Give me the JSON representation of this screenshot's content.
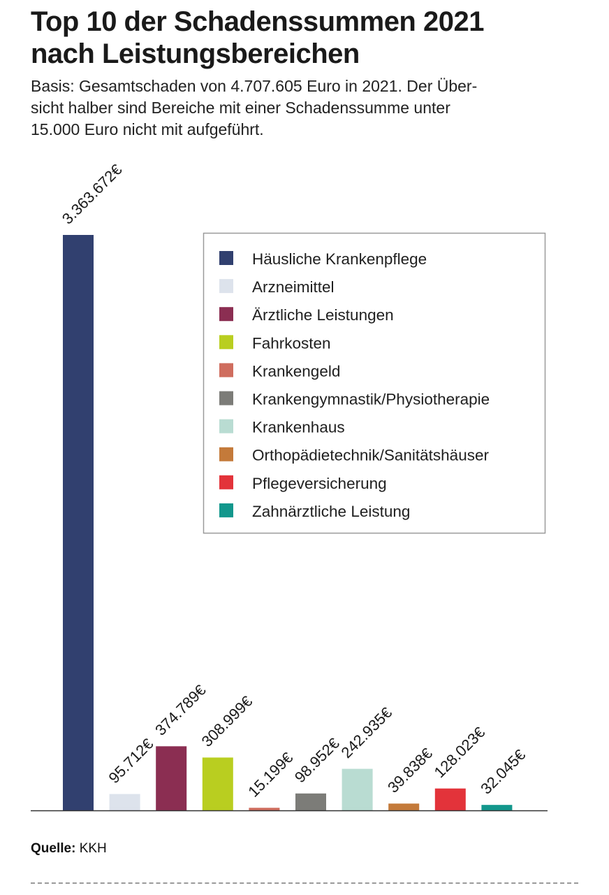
{
  "header": {
    "title_line1": "Top 10 der Schadenssummen 2021",
    "title_line2": "nach Leistungsbereichen",
    "subtitle_line1": "Basis: Gesamtschaden von 4.707.605 Euro in 2021. Der Über-",
    "subtitle_line2": "sicht halber sind Bereiche mit einer Schadenssumme unter",
    "subtitle_line3": "15.000 Euro nicht mit aufgeführt."
  },
  "footer": {
    "source_label": "Quelle:",
    "source_value": "KKH"
  },
  "chart_data": {
    "type": "bar",
    "categories": [
      "Häusliche Krankenpflege",
      "Arzneimittel",
      "Ärztliche Leistungen",
      "Fahrkosten",
      "Krankengeld",
      "Krankengymnastik/Physiotherapie",
      "Krankenhaus",
      "Orthopädietechnik/Sanitätshäuser",
      "Pflegeversicherung",
      "Zahnärztliche Leistung"
    ],
    "values": [
      3363672,
      95712,
      374789,
      308999,
      15199,
      98952,
      242935,
      39838,
      128023,
      32045
    ],
    "data_labels": [
      "3.363.672€",
      "95.712€",
      "374.789€",
      "308.999€",
      "15.199€",
      "98.952€",
      "242.935€",
      "39.838€",
      "128.023€",
      "32.045€"
    ],
    "colors": [
      "#31406f",
      "#dde3ec",
      "#8b2e52",
      "#b9ce20",
      "#cf6d5e",
      "#7c7c78",
      "#b9dcd2",
      "#c47a3a",
      "#e3333a",
      "#12978c"
    ],
    "ylim": [
      0,
      3363672
    ],
    "legend_position": "top-right",
    "grid": false
  }
}
